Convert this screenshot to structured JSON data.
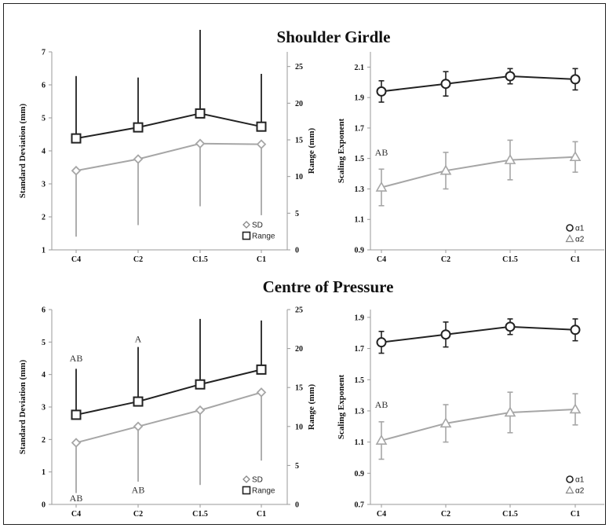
{
  "sections": [
    {
      "title": "Shoulder Girdle"
    },
    {
      "title": "Centre of Pressure"
    }
  ],
  "chart_data": [
    {
      "type": "line",
      "panel": "shoulder-sd-range",
      "categories": [
        "C4",
        "C2",
        "C1.5",
        "C1"
      ],
      "ylabel": "Standard Deviation (mm)",
      "ylim": [
        1,
        7
      ],
      "yticks": [
        "1",
        "2",
        "3",
        "4",
        "5",
        "6",
        "7"
      ],
      "y2label": "Range (mm)",
      "y2lim": [
        0,
        27
      ],
      "y2ticks": [
        "0",
        "5",
        "10",
        "15",
        "20",
        "25"
      ],
      "legend_position": "bottom-right",
      "series": [
        {
          "name": "SD",
          "axis": "left",
          "marker": "diamond",
          "color": "#a6a6a6",
          "values": [
            3.4,
            3.75,
            4.22,
            4.2
          ],
          "err_low": [
            1.4,
            1.75,
            2.32,
            2.05
          ]
        },
        {
          "name": "Range",
          "axis": "right",
          "marker": "square",
          "color": "#222222",
          "values": [
            15.2,
            16.7,
            18.6,
            16.8
          ],
          "err_high": [
            23.7,
            23.5,
            30.0,
            24.0
          ]
        }
      ],
      "annotations": []
    },
    {
      "type": "line",
      "panel": "shoulder-scaling",
      "categories": [
        "C4",
        "C2",
        "C1.5",
        "C1"
      ],
      "ylabel": "Scaling Exponent",
      "ylim": [
        0.9,
        2.2
      ],
      "yticks": [
        "0.9",
        "1.1",
        "1.3",
        "1.5",
        "1.7",
        "1.9",
        "2.1"
      ],
      "legend_position": "bottom-right",
      "series": [
        {
          "name": "α1",
          "marker": "circle",
          "color": "#222222",
          "values": [
            1.94,
            1.99,
            2.04,
            2.02
          ],
          "err": [
            0.07,
            0.08,
            0.05,
            0.07
          ]
        },
        {
          "name": "α2",
          "marker": "triangle",
          "color": "#a6a6a6",
          "values": [
            1.31,
            1.42,
            1.49,
            1.51
          ],
          "err": [
            0.12,
            0.12,
            0.13,
            0.1
          ]
        }
      ],
      "annotations": [
        {
          "text": "AB",
          "x": "C4",
          "y": 1.52
        }
      ]
    },
    {
      "type": "line",
      "panel": "cop-sd-range",
      "categories": [
        "C4",
        "C2",
        "C1.5",
        "C1"
      ],
      "ylabel": "Standard Deviation (mm)",
      "ylim": [
        0,
        6
      ],
      "yticks": [
        "0",
        "1",
        "2",
        "3",
        "4",
        "5",
        "6"
      ],
      "y2label": "Range (mm)",
      "y2lim": [
        0,
        25
      ],
      "y2ticks": [
        "0",
        "5",
        "10",
        "15",
        "20",
        "25"
      ],
      "legend_position": "bottom-right",
      "series": [
        {
          "name": "SD",
          "axis": "left",
          "marker": "diamond",
          "color": "#a6a6a6",
          "values": [
            1.9,
            2.4,
            2.9,
            3.45
          ],
          "err_low": [
            0.35,
            0.7,
            0.6,
            1.35
          ]
        },
        {
          "name": "Range",
          "axis": "right",
          "marker": "square",
          "color": "#222222",
          "values": [
            11.5,
            13.2,
            15.4,
            17.3
          ],
          "err_high": [
            17.4,
            20.2,
            23.8,
            23.6
          ]
        }
      ],
      "annotations": [
        {
          "text": "AB",
          "x": "C4",
          "y": 4.4
        },
        {
          "text": "A",
          "x": "C2",
          "y": 5.0
        },
        {
          "text": "AB",
          "x": "C4",
          "y": 0.1
        },
        {
          "text": "AB",
          "x": "C2",
          "y": 0.35
        }
      ]
    },
    {
      "type": "line",
      "panel": "cop-scaling",
      "categories": [
        "C4",
        "C2",
        "C1.5",
        "C1"
      ],
      "ylabel": "Scaling Exponent",
      "ylim": [
        0.7,
        1.95
      ],
      "yticks": [
        "0.7",
        "0.9",
        "1.1",
        "1.3",
        "1.5",
        "1.7",
        "1.9"
      ],
      "legend_position": "bottom-right",
      "series": [
        {
          "name": "α1",
          "marker": "circle",
          "color": "#222222",
          "values": [
            1.74,
            1.79,
            1.84,
            1.82
          ],
          "err": [
            0.07,
            0.08,
            0.05,
            0.07
          ]
        },
        {
          "name": "α2",
          "marker": "triangle",
          "color": "#a6a6a6",
          "values": [
            1.11,
            1.22,
            1.29,
            1.31
          ],
          "err": [
            0.12,
            0.12,
            0.13,
            0.1
          ]
        }
      ],
      "annotations": [
        {
          "text": "AB",
          "x": "C4",
          "y": 1.32
        }
      ]
    }
  ]
}
